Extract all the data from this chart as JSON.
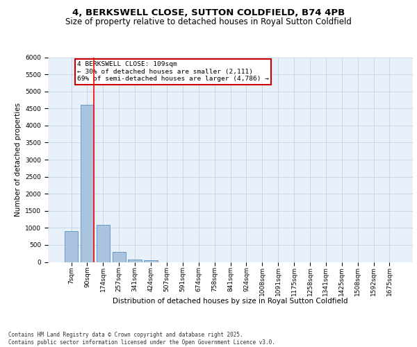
{
  "title": "4, BERKSWELL CLOSE, SUTTON COLDFIELD, B74 4PB",
  "subtitle": "Size of property relative to detached houses in Royal Sutton Coldfield",
  "xlabel": "Distribution of detached houses by size in Royal Sutton Coldfield",
  "ylabel": "Number of detached properties",
  "categories": [
    "7sqm",
    "90sqm",
    "174sqm",
    "257sqm",
    "341sqm",
    "424sqm",
    "507sqm",
    "591sqm",
    "674sqm",
    "758sqm",
    "841sqm",
    "924sqm",
    "1008sqm",
    "1091sqm",
    "1175sqm",
    "1258sqm",
    "1341sqm",
    "1425sqm",
    "1508sqm",
    "1592sqm",
    "1675sqm"
  ],
  "values": [
    900,
    4600,
    1090,
    290,
    75,
    55,
    0,
    0,
    0,
    0,
    0,
    0,
    0,
    0,
    0,
    0,
    0,
    0,
    0,
    0,
    0
  ],
  "bar_color": "#aac4e0",
  "bar_edge_color": "#5a8fc0",
  "property_line_x": 1.42,
  "annotation_text": "4 BERKSWELL CLOSE: 109sqm\n← 30% of detached houses are smaller (2,111)\n69% of semi-detached houses are larger (4,786) →",
  "annotation_box_color": "#cc0000",
  "annotation_bg_color": "#ffffff",
  "ylim": [
    0,
    6000
  ],
  "yticks": [
    0,
    500,
    1000,
    1500,
    2000,
    2500,
    3000,
    3500,
    4000,
    4500,
    5000,
    5500,
    6000
  ],
  "grid_color": "#c8d8e8",
  "bg_color": "#e8f0fa",
  "footer": "Contains HM Land Registry data © Crown copyright and database right 2025.\nContains public sector information licensed under the Open Government Licence v3.0.",
  "title_fontsize": 9.5,
  "subtitle_fontsize": 8.5,
  "xlabel_fontsize": 7.5,
  "ylabel_fontsize": 7.5,
  "tick_fontsize": 6.5,
  "footer_fontsize": 5.5
}
